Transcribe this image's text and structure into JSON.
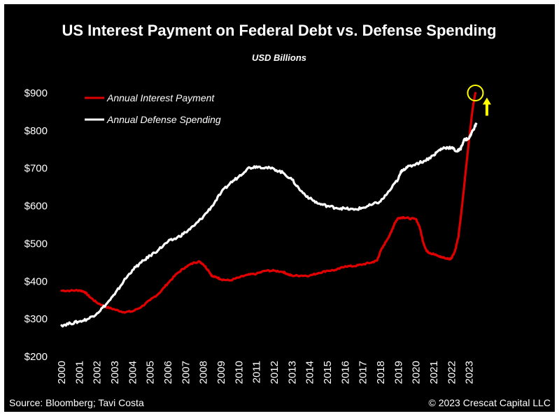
{
  "chart_data": {
    "type": "line",
    "title": "US Interest Payment on Federal Debt vs. Defense Spending",
    "subtitle": "USD Billions",
    "y_tick_labels": [
      "$200",
      "$300",
      "$400",
      "$500",
      "$600",
      "$700",
      "$800",
      "$900"
    ],
    "y_ticks": [
      200,
      300,
      400,
      500,
      600,
      700,
      800,
      900
    ],
    "ylim": [
      200,
      900
    ],
    "xlim": [
      2000,
      2024.2
    ],
    "x_tick_labels": [
      "2000",
      "2001",
      "2002",
      "2003",
      "2004",
      "2005",
      "2006",
      "2007",
      "2008",
      "2009",
      "2010",
      "2011",
      "2012",
      "2013",
      "2014",
      "2015",
      "2016",
      "2017",
      "2018",
      "2019",
      "2020",
      "2021",
      "2022",
      "2023"
    ],
    "x_ticks": [
      2000,
      2001,
      2002,
      2003,
      2004,
      2005,
      2006,
      2007,
      2008,
      2009,
      2010,
      2011,
      2012,
      2013,
      2014,
      2015,
      2016,
      2017,
      2018,
      2019,
      2020,
      2021,
      2022,
      2023
    ],
    "legend_position": "top-left",
    "series": [
      {
        "name": "Annual Interest Payment",
        "color": "#e00000",
        "points": [
          [
            2000.0,
            375
          ],
          [
            2000.5,
            375
          ],
          [
            2001.0,
            376
          ],
          [
            2001.3,
            372
          ],
          [
            2001.6,
            358
          ],
          [
            2002.0,
            343
          ],
          [
            2002.5,
            332
          ],
          [
            2003.0,
            325
          ],
          [
            2003.5,
            318
          ],
          [
            2004.0,
            320
          ],
          [
            2004.5,
            332
          ],
          [
            2005.0,
            350
          ],
          [
            2005.5,
            368
          ],
          [
            2006.0,
            395
          ],
          [
            2006.5,
            420
          ],
          [
            2007.0,
            438
          ],
          [
            2007.5,
            450
          ],
          [
            2007.8,
            452
          ],
          [
            2008.0,
            445
          ],
          [
            2008.3,
            428
          ],
          [
            2008.5,
            413
          ],
          [
            2008.8,
            410
          ],
          [
            2009.0,
            405
          ],
          [
            2009.5,
            402
          ],
          [
            2010.0,
            410
          ],
          [
            2010.5,
            417
          ],
          [
            2011.0,
            420
          ],
          [
            2011.5,
            428
          ],
          [
            2012.0,
            428
          ],
          [
            2012.5,
            425
          ],
          [
            2012.8,
            418
          ],
          [
            2013.0,
            415
          ],
          [
            2013.5,
            415
          ],
          [
            2014.0,
            415
          ],
          [
            2014.5,
            422
          ],
          [
            2015.0,
            428
          ],
          [
            2015.5,
            430
          ],
          [
            2016.0,
            440
          ],
          [
            2016.5,
            440
          ],
          [
            2017.0,
            445
          ],
          [
            2017.5,
            450
          ],
          [
            2017.8,
            455
          ],
          [
            2018.0,
            480
          ],
          [
            2018.3,
            505
          ],
          [
            2018.6,
            530
          ],
          [
            2018.8,
            555
          ],
          [
            2019.0,
            568
          ],
          [
            2019.3,
            570
          ],
          [
            2019.6,
            567
          ],
          [
            2020.0,
            565
          ],
          [
            2020.2,
            545
          ],
          [
            2020.4,
            505
          ],
          [
            2020.6,
            480
          ],
          [
            2020.8,
            475
          ],
          [
            2021.0,
            472
          ],
          [
            2021.3,
            466
          ],
          [
            2021.6,
            462
          ],
          [
            2021.9,
            459
          ],
          [
            2022.0,
            462
          ],
          [
            2022.2,
            480
          ],
          [
            2022.4,
            520
          ],
          [
            2022.6,
            600
          ],
          [
            2022.8,
            690
          ],
          [
            2023.0,
            780
          ],
          [
            2023.2,
            860
          ],
          [
            2023.35,
            900
          ]
        ]
      },
      {
        "name": "Annual Defense Spending",
        "color": "#ffffff",
        "points": [
          [
            2000.0,
            283
          ],
          [
            2000.5,
            288
          ],
          [
            2001.0,
            293
          ],
          [
            2001.5,
            300
          ],
          [
            2002.0,
            315
          ],
          [
            2002.5,
            338
          ],
          [
            2003.0,
            365
          ],
          [
            2003.5,
            400
          ],
          [
            2004.0,
            430
          ],
          [
            2004.5,
            450
          ],
          [
            2005.0,
            468
          ],
          [
            2005.5,
            485
          ],
          [
            2006.0,
            505
          ],
          [
            2006.5,
            515
          ],
          [
            2007.0,
            530
          ],
          [
            2007.5,
            548
          ],
          [
            2008.0,
            572
          ],
          [
            2008.5,
            600
          ],
          [
            2009.0,
            635
          ],
          [
            2009.5,
            660
          ],
          [
            2010.0,
            678
          ],
          [
            2010.5,
            700
          ],
          [
            2011.0,
            705
          ],
          [
            2011.5,
            702
          ],
          [
            2012.0,
            698
          ],
          [
            2012.5,
            688
          ],
          [
            2013.0,
            670
          ],
          [
            2013.5,
            640
          ],
          [
            2014.0,
            620
          ],
          [
            2014.5,
            606
          ],
          [
            2015.0,
            600
          ],
          [
            2015.5,
            595
          ],
          [
            2016.0,
            593
          ],
          [
            2016.5,
            590
          ],
          [
            2017.0,
            595
          ],
          [
            2017.5,
            603
          ],
          [
            2018.0,
            612
          ],
          [
            2018.5,
            640
          ],
          [
            2019.0,
            672
          ],
          [
            2019.2,
            695
          ],
          [
            2019.5,
            702
          ],
          [
            2020.0,
            712
          ],
          [
            2020.5,
            720
          ],
          [
            2021.0,
            735
          ],
          [
            2021.3,
            748
          ],
          [
            2021.6,
            755
          ],
          [
            2022.0,
            755
          ],
          [
            2022.3,
            745
          ],
          [
            2022.5,
            750
          ],
          [
            2022.7,
            775
          ],
          [
            2023.0,
            780
          ],
          [
            2023.2,
            800
          ],
          [
            2023.4,
            818
          ]
        ]
      }
    ],
    "annotations": [
      {
        "type": "circle",
        "color": "#ffff00",
        "x": 2023.35,
        "y": 900
      },
      {
        "type": "up-arrow",
        "color": "#ffff00",
        "x": 2024.0,
        "y": 862
      }
    ]
  },
  "footer": {
    "source": "Source: Bloomberg; Tavi Costa",
    "copyright": "© 2023 Crescat Capital LLC"
  }
}
